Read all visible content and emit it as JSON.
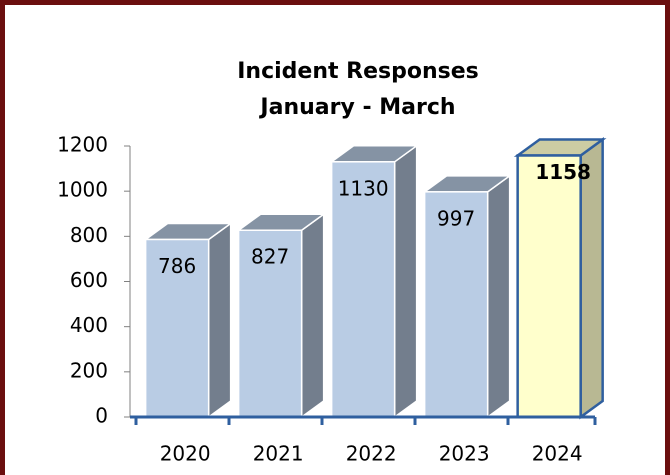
{
  "chart_data": {
    "type": "bar3d",
    "title": "Incident Responses",
    "subtitle": "January - March",
    "categories": [
      "2020",
      "2021",
      "2022",
      "2023",
      "2024"
    ],
    "values": [
      786,
      827,
      1130,
      997,
      1158
    ],
    "colors": [
      "#b9cce4",
      "#b9cce4",
      "#b9cce4",
      "#b9cce4",
      "#ffffcc"
    ],
    "label_weights": [
      "normal",
      "normal",
      "normal",
      "normal",
      "bold"
    ],
    "ylim": [
      0,
      1200
    ],
    "yticks": [
      0,
      200,
      400,
      600,
      800,
      1000,
      1200
    ],
    "grid": false
  }
}
